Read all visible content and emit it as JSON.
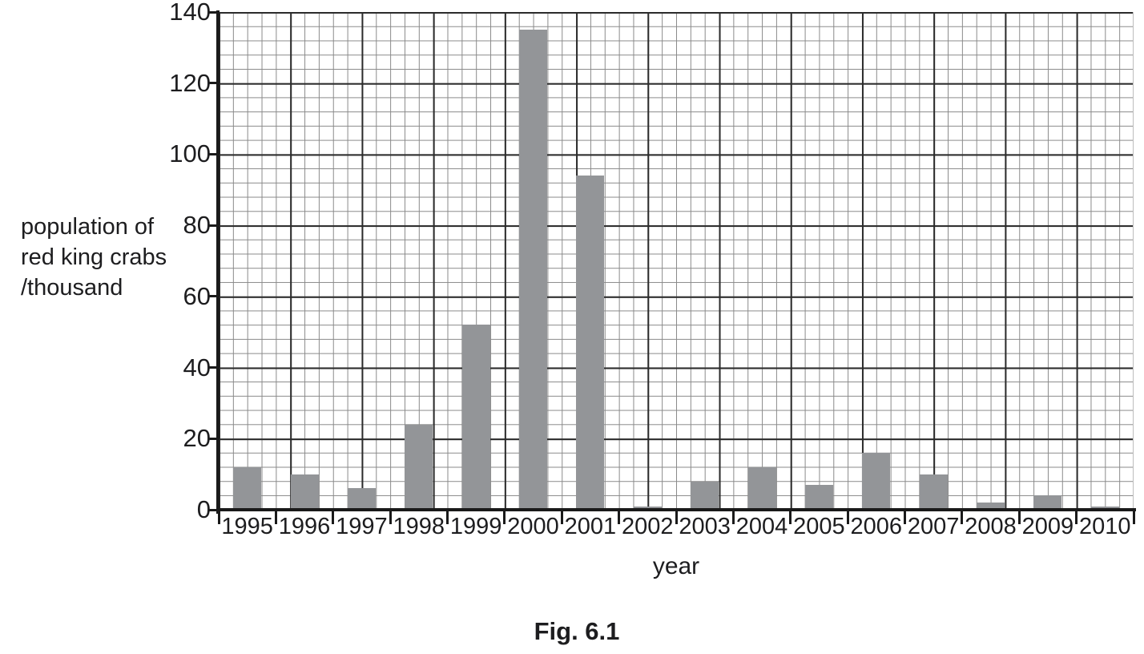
{
  "figure": {
    "caption": "Fig. 6.1",
    "x_axis_title": "year",
    "y_axis_title_lines": [
      "population of",
      "red king crabs",
      "/thousand"
    ]
  },
  "colors": {
    "bar_fill": "#939598",
    "axis_line": "#1a1a1a",
    "grid_minor": "#8a8a8a",
    "grid_major": "#2b2b2b",
    "text": "#1d1d1f"
  },
  "chart_data": {
    "type": "bar",
    "title": "Fig. 6.1",
    "categories": [
      "1995",
      "1996",
      "1997",
      "1998",
      "1999",
      "2000",
      "2001",
      "2002",
      "2003",
      "2004",
      "2005",
      "2006",
      "2007",
      "2008",
      "2009",
      "2010"
    ],
    "values": [
      12,
      10,
      6,
      24,
      52,
      135,
      94,
      1,
      8,
      12,
      7,
      16,
      10,
      2,
      4,
      1
    ],
    "xlabel": "year",
    "ylabel": "population of red king crabs /thousand",
    "ylim": [
      0,
      140
    ],
    "ytick_step": 20,
    "yticks": [
      0,
      20,
      40,
      60,
      80,
      100,
      120,
      140
    ],
    "grid": "graph paper: minor squares = 4 units on y-axis and quarter-category on x-axis; heavy major line every 5 squares",
    "legend": "none",
    "bar_color": "#939598"
  }
}
